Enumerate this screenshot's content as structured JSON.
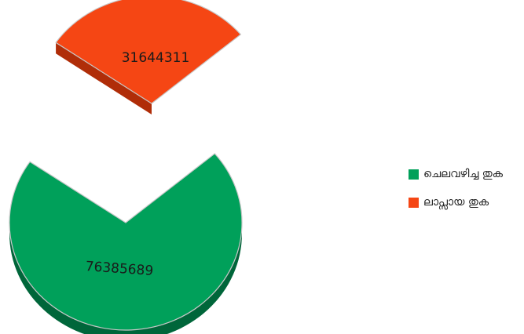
{
  "chart_data": {
    "type": "pie",
    "title": "",
    "series": [
      {
        "values": [
          76385689,
          31644311
        ],
        "labels": [
          "76385689",
          "31644311"
        ]
      }
    ],
    "categories": [
      "ചെലവഴിച്ച തുക",
      "ലാപ്സായ തുക"
    ],
    "legend_position": "right",
    "exploded": true,
    "three_d": true,
    "colors": {
      "spent": "#00a05a",
      "spent_side": "#00663a",
      "lapsed": "#f54614",
      "lapsed_side": "#b02d08",
      "outline": "#c8c8c8"
    }
  }
}
